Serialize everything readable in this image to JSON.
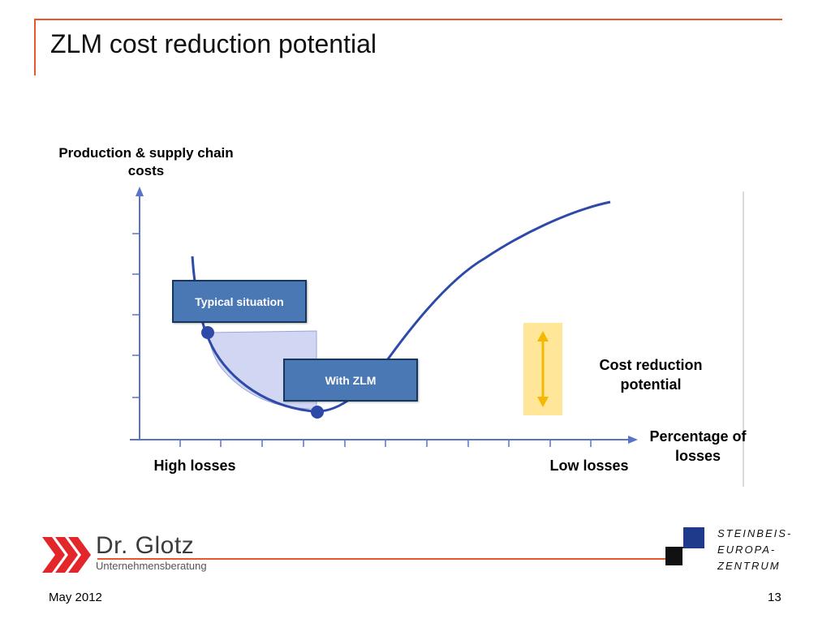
{
  "slide": {
    "title": "ZLM cost reduction potential",
    "accent_color": "#e8562a"
  },
  "diagram": {
    "y_axis_label": "Production & supply chain costs",
    "x_axis_label": "Percentage of losses",
    "x_left_label": "High losses",
    "x_right_label": "Low losses",
    "box_typical": "Typical situation",
    "box_zlm": "With ZLM",
    "reduction_label": "Cost reduction potential",
    "curve_color": "#2e4aa8",
    "box_color": "#4a78b5",
    "highlight_color": "#ffe699",
    "arrow_color": "#f5b800"
  },
  "footer": {
    "brand_name": "Dr. Glotz",
    "brand_sub": "Unternehmensberatung",
    "partner_line1": "STEINBEIS-",
    "partner_line2": "EUROPA-",
    "partner_line3": "ZENTRUM",
    "date": "May 2012",
    "page": "13"
  }
}
